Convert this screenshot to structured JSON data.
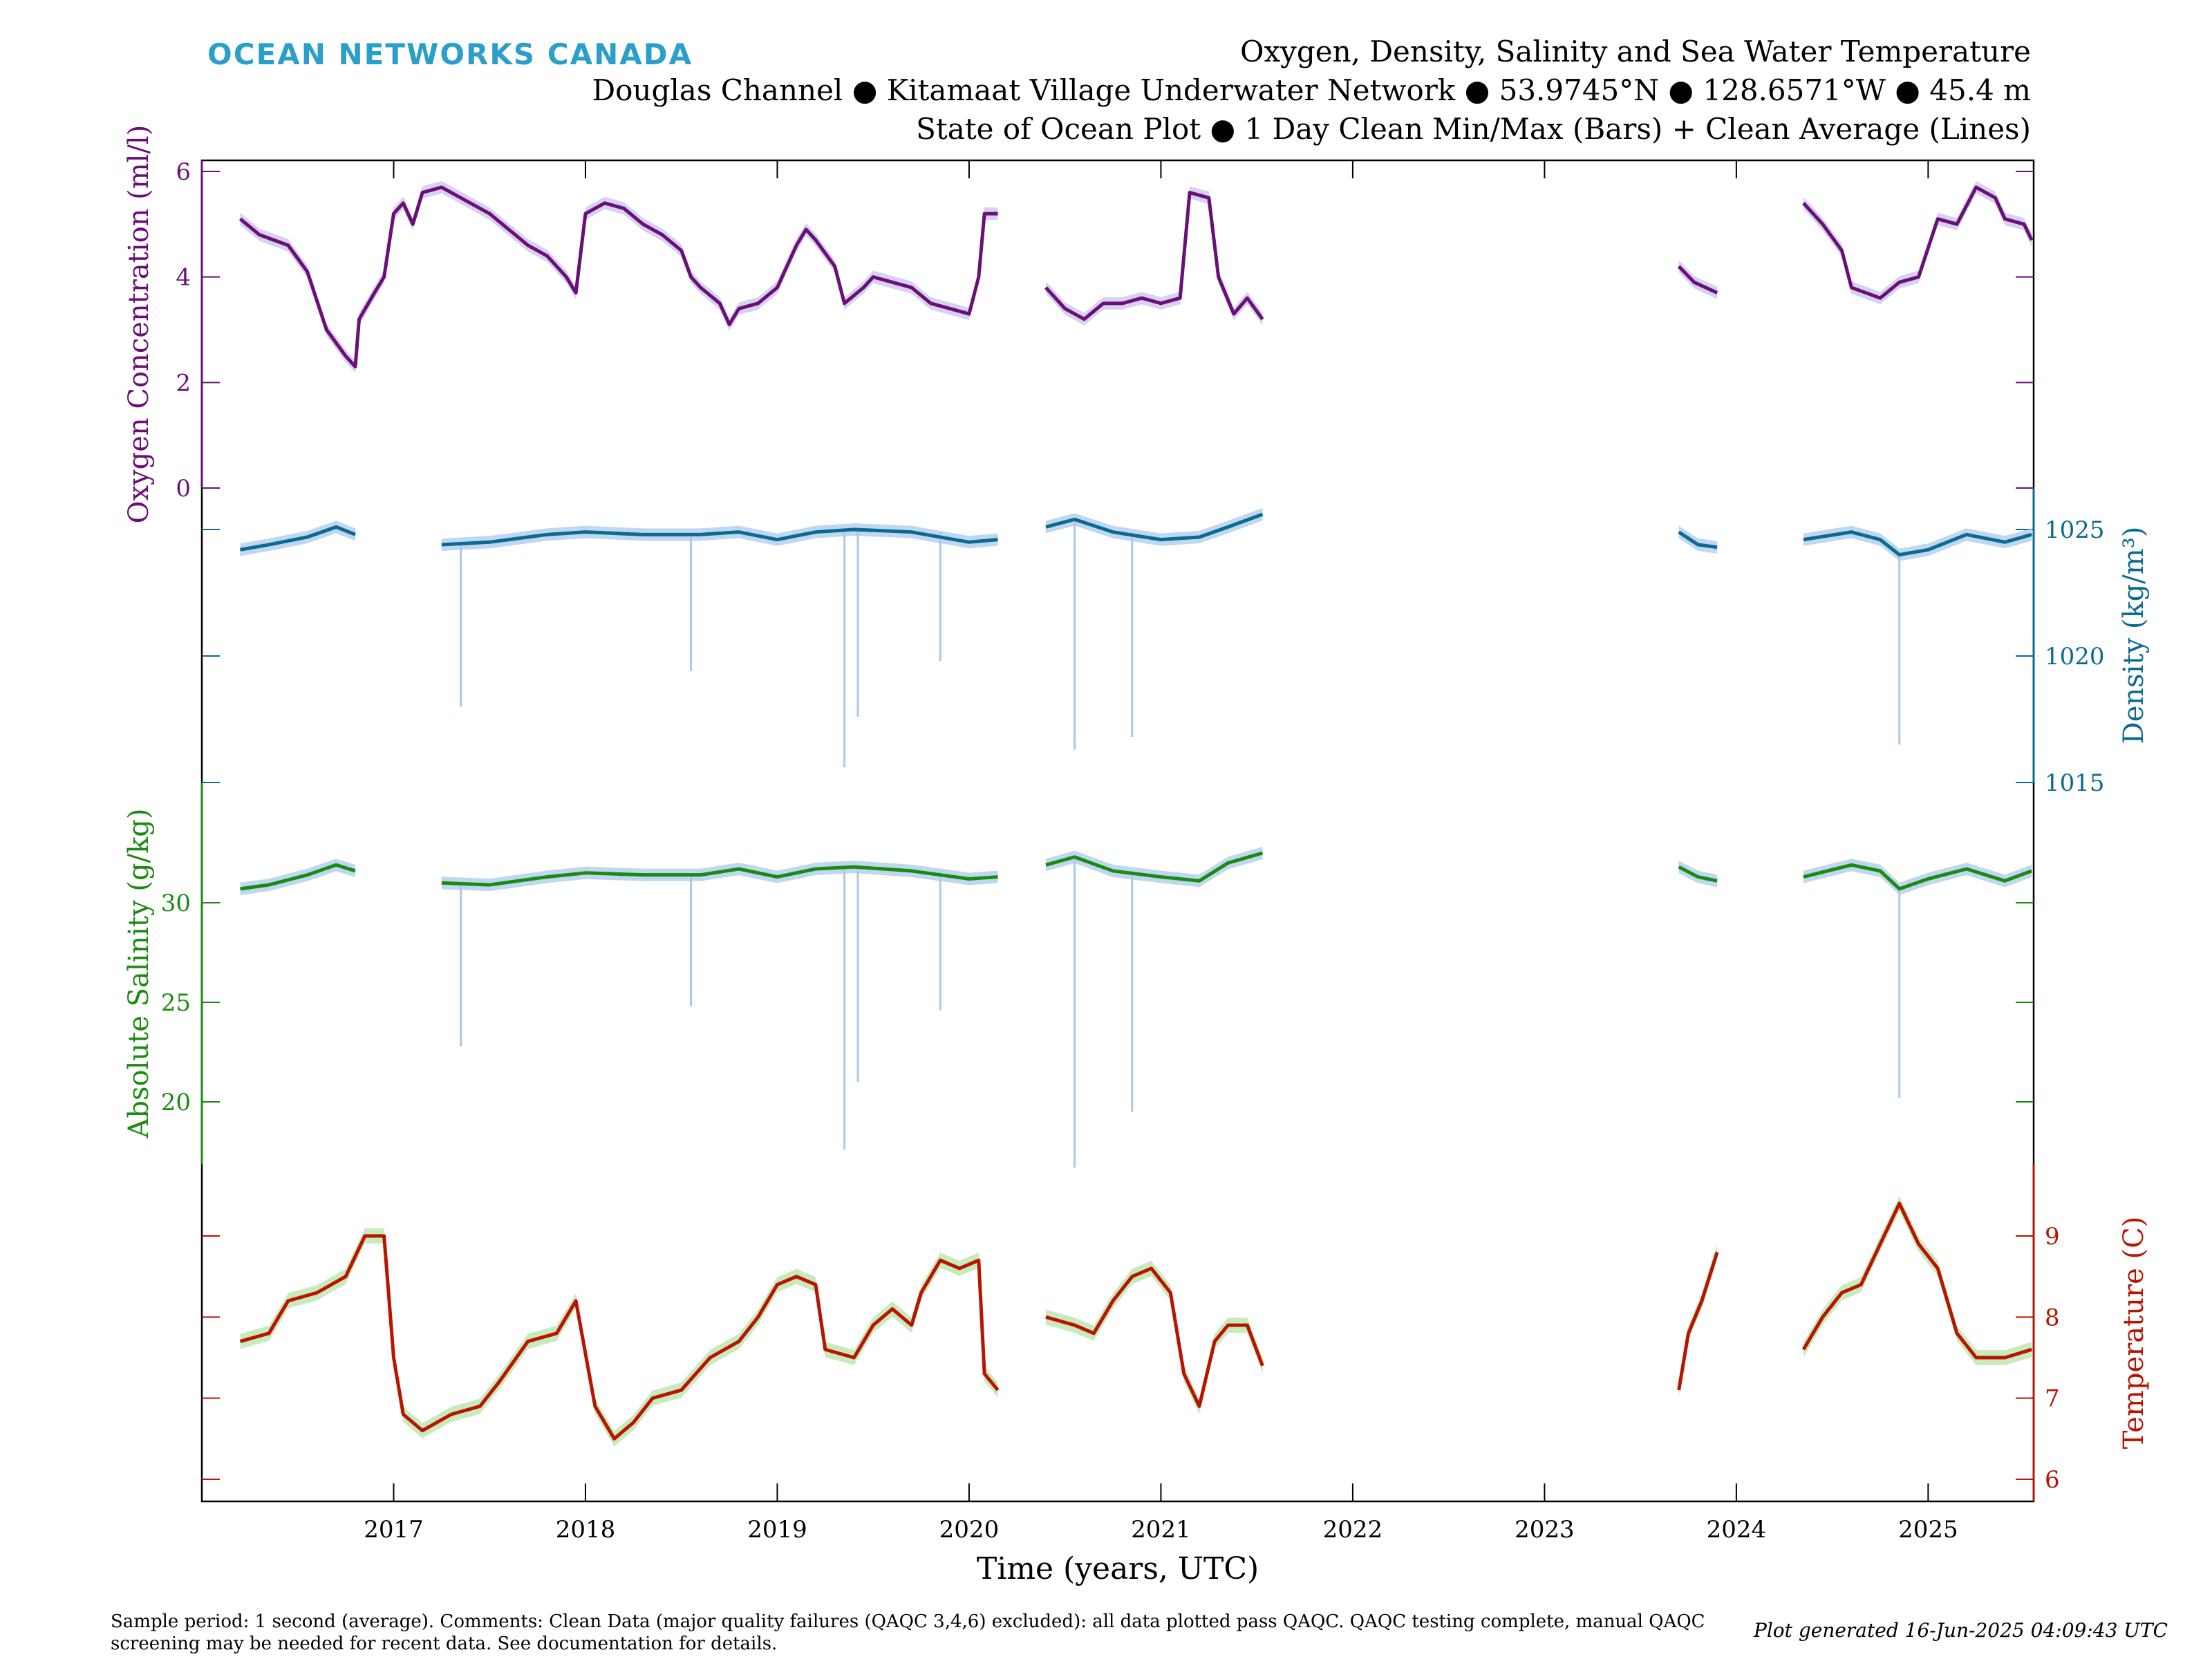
{
  "header": {
    "logo": "OCEAN NETWORKS CANADA",
    "title": "Oxygen, Density, Salinity and Sea Water Temperature",
    "subtitle": "Douglas Channel ● Kitamaat Village Underwater Network ● 53.9745°N ● 128.6571°W ● 45.4 m",
    "subtitle2": "State of Ocean Plot ● 1 Day Clean Min/Max (Bars) + Clean Average (Lines)"
  },
  "footer": {
    "note": "Sample period: 1 second (average). Comments: Clean Data (major quality failures (QAQC 3,4,6) excluded): all data plotted pass QAQC. QAQC testing complete, manual QAQC screening may be needed for recent data. See documentation for details.",
    "generated": "Plot generated 16-Jun-2025 04:09:43 UTC"
  },
  "colors": {
    "oxygen": "#6b0f78",
    "oxygen_band": "#c9c3ea",
    "density": "#0b6a8f",
    "salinity": "#1a8a10",
    "temperature": "#b81400",
    "band_blue": "#a9c9ec",
    "band_green": "#b5e4a8",
    "logo": "#2a9fc9"
  },
  "chart_data": {
    "type": "line",
    "xlabel": "Time (years, UTC)",
    "xlim": [
      2016.0,
      2025.55
    ],
    "x_ticks": [
      "2017",
      "2018",
      "2019",
      "2020",
      "2021",
      "2022",
      "2023",
      "2024",
      "2025"
    ],
    "series": [
      {
        "name": "Oxygen Concentration",
        "ylabel": "Oxygen Concentration (ml/l)",
        "axis": "left",
        "ticks": [
          "0",
          "2",
          "4",
          "6"
        ],
        "segments": [
          [
            [
              2016.2,
              5.1
            ],
            [
              2016.3,
              4.8
            ],
            [
              2016.45,
              4.6
            ],
            [
              2016.55,
              4.1
            ],
            [
              2016.65,
              3.0
            ],
            [
              2016.75,
              2.5
            ],
            [
              2016.8,
              2.3
            ],
            [
              2016.82,
              3.2
            ],
            [
              2016.9,
              3.7
            ],
            [
              2016.95,
              4.0
            ],
            [
              2017.0,
              5.2
            ],
            [
              2017.05,
              5.4
            ],
            [
              2017.1,
              5.0
            ],
            [
              2017.15,
              5.6
            ],
            [
              2017.25,
              5.7
            ],
            [
              2017.35,
              5.5
            ],
            [
              2017.5,
              5.2
            ],
            [
              2017.6,
              4.9
            ],
            [
              2017.7,
              4.6
            ],
            [
              2017.8,
              4.4
            ],
            [
              2017.9,
              4.0
            ],
            [
              2017.95,
              3.7
            ],
            [
              2018.0,
              5.2
            ],
            [
              2018.1,
              5.4
            ],
            [
              2018.2,
              5.3
            ],
            [
              2018.3,
              5.0
            ],
            [
              2018.4,
              4.8
            ],
            [
              2018.5,
              4.5
            ],
            [
              2018.55,
              4.0
            ],
            [
              2018.6,
              3.8
            ],
            [
              2018.7,
              3.5
            ],
            [
              2018.75,
              3.1
            ],
            [
              2018.8,
              3.4
            ],
            [
              2018.9,
              3.5
            ],
            [
              2019.0,
              3.8
            ],
            [
              2019.05,
              4.2
            ],
            [
              2019.1,
              4.6
            ],
            [
              2019.15,
              4.9
            ],
            [
              2019.2,
              4.7
            ],
            [
              2019.3,
              4.2
            ],
            [
              2019.35,
              3.5
            ],
            [
              2019.45,
              3.8
            ],
            [
              2019.5,
              4.0
            ],
            [
              2019.6,
              3.9
            ],
            [
              2019.7,
              3.8
            ],
            [
              2019.8,
              3.5
            ],
            [
              2019.9,
              3.4
            ],
            [
              2020.0,
              3.3
            ],
            [
              2020.05,
              4.0
            ],
            [
              2020.08,
              5.2
            ],
            [
              2020.15,
              5.2
            ]
          ],
          [
            [
              2020.4,
              3.8
            ],
            [
              2020.5,
              3.4
            ],
            [
              2020.6,
              3.2
            ],
            [
              2020.7,
              3.5
            ],
            [
              2020.8,
              3.5
            ],
            [
              2020.9,
              3.6
            ],
            [
              2021.0,
              3.5
            ],
            [
              2021.1,
              3.6
            ],
            [
              2021.15,
              5.6
            ],
            [
              2021.25,
              5.5
            ],
            [
              2021.3,
              4.0
            ],
            [
              2021.38,
              3.3
            ],
            [
              2021.45,
              3.6
            ],
            [
              2021.53,
              3.2
            ]
          ],
          [
            [
              2023.7,
              4.2
            ],
            [
              2023.78,
              3.9
            ],
            [
              2023.9,
              3.7
            ]
          ],
          [
            [
              2024.35,
              5.4
            ],
            [
              2024.45,
              5.0
            ],
            [
              2024.55,
              4.5
            ],
            [
              2024.6,
              3.8
            ],
            [
              2024.75,
              3.6
            ],
            [
              2024.85,
              3.9
            ],
            [
              2024.95,
              4.0
            ],
            [
              2025.05,
              5.1
            ],
            [
              2025.15,
              5.0
            ],
            [
              2025.25,
              5.7
            ],
            [
              2025.35,
              5.5
            ],
            [
              2025.4,
              5.1
            ],
            [
              2025.5,
              5.0
            ],
            [
              2025.54,
              4.7
            ]
          ]
        ]
      },
      {
        "name": "Density",
        "ylabel": "Density (kg/m³)",
        "axis": "right",
        "ticks": [
          "1015",
          "1020",
          "1025"
        ],
        "segments": [
          [
            [
              2016.2,
              1024.2
            ],
            [
              2016.35,
              1024.4
            ],
            [
              2016.55,
              1024.7
            ],
            [
              2016.7,
              1025.1
            ],
            [
              2016.8,
              1024.8
            ]
          ],
          [
            [
              2017.25,
              1024.4
            ],
            [
              2017.5,
              1024.5
            ],
            [
              2017.8,
              1024.8
            ],
            [
              2018.0,
              1024.9
            ],
            [
              2018.3,
              1024.8
            ],
            [
              2018.6,
              1024.8
            ],
            [
              2018.8,
              1024.9
            ],
            [
              2019.0,
              1024.6
            ],
            [
              2019.2,
              1024.9
            ],
            [
              2019.4,
              1025.0
            ],
            [
              2019.7,
              1024.9
            ],
            [
              2020.0,
              1024.5
            ],
            [
              2020.15,
              1024.6
            ]
          ],
          [
            [
              2020.4,
              1025.1
            ],
            [
              2020.55,
              1025.4
            ],
            [
              2020.75,
              1024.9
            ],
            [
              2021.0,
              1024.6
            ],
            [
              2021.2,
              1024.7
            ],
            [
              2021.35,
              1025.1
            ],
            [
              2021.53,
              1025.6
            ]
          ],
          [
            [
              2023.7,
              1024.9
            ],
            [
              2023.8,
              1024.4
            ],
            [
              2023.9,
              1024.3
            ]
          ],
          [
            [
              2024.35,
              1024.6
            ],
            [
              2024.6,
              1024.9
            ],
            [
              2024.75,
              1024.6
            ],
            [
              2024.85,
              1024.0
            ],
            [
              2025.0,
              1024.2
            ],
            [
              2025.2,
              1024.8
            ],
            [
              2025.4,
              1024.5
            ],
            [
              2025.54,
              1024.8
            ]
          ]
        ],
        "min_spikes": [
          [
            2017.35,
            1018.0
          ],
          [
            2018.55,
            1019.4
          ],
          [
            2019.35,
            1015.6
          ],
          [
            2019.42,
            1017.6
          ],
          [
            2019.85,
            1019.8
          ],
          [
            2020.55,
            1016.3
          ],
          [
            2020.85,
            1016.8
          ],
          [
            2024.85,
            1016.5
          ]
        ]
      },
      {
        "name": "Absolute Salinity",
        "ylabel": "Absolute Salinity (g/kg)",
        "axis": "left",
        "ticks": [
          "20",
          "25",
          "30"
        ],
        "segments": [
          [
            [
              2016.2,
              30.7
            ],
            [
              2016.35,
              30.9
            ],
            [
              2016.55,
              31.4
            ],
            [
              2016.7,
              31.9
            ],
            [
              2016.8,
              31.6
            ]
          ],
          [
            [
              2017.25,
              31.0
            ],
            [
              2017.5,
              30.9
            ],
            [
              2017.8,
              31.3
            ],
            [
              2018.0,
              31.5
            ],
            [
              2018.3,
              31.4
            ],
            [
              2018.6,
              31.4
            ],
            [
              2018.8,
              31.7
            ],
            [
              2019.0,
              31.3
            ],
            [
              2019.2,
              31.7
            ],
            [
              2019.4,
              31.8
            ],
            [
              2019.7,
              31.6
            ],
            [
              2020.0,
              31.2
            ],
            [
              2020.15,
              31.3
            ]
          ],
          [
            [
              2020.4,
              31.9
            ],
            [
              2020.55,
              32.3
            ],
            [
              2020.75,
              31.6
            ],
            [
              2021.0,
              31.3
            ],
            [
              2021.2,
              31.1
            ],
            [
              2021.35,
              32.0
            ],
            [
              2021.53,
              32.5
            ]
          ],
          [
            [
              2023.7,
              31.8
            ],
            [
              2023.8,
              31.3
            ],
            [
              2023.9,
              31.1
            ]
          ],
          [
            [
              2024.35,
              31.3
            ],
            [
              2024.6,
              31.9
            ],
            [
              2024.75,
              31.6
            ],
            [
              2024.85,
              30.7
            ],
            [
              2025.0,
              31.2
            ],
            [
              2025.2,
              31.7
            ],
            [
              2025.4,
              31.1
            ],
            [
              2025.54,
              31.6
            ]
          ]
        ],
        "min_spikes": [
          [
            2017.35,
            22.8
          ],
          [
            2018.55,
            24.8
          ],
          [
            2019.35,
            17.6
          ],
          [
            2019.42,
            21.0
          ],
          [
            2019.85,
            24.6
          ],
          [
            2020.55,
            16.7
          ],
          [
            2020.85,
            19.5
          ],
          [
            2024.85,
            20.2
          ]
        ]
      },
      {
        "name": "Temperature",
        "ylabel": "Temperature (C)",
        "axis": "right",
        "ticks": [
          "6",
          "7",
          "8",
          "9"
        ],
        "segments": [
          [
            [
              2016.2,
              7.7
            ],
            [
              2016.35,
              7.8
            ],
            [
              2016.45,
              8.2
            ],
            [
              2016.6,
              8.3
            ],
            [
              2016.75,
              8.5
            ],
            [
              2016.85,
              9.0
            ],
            [
              2016.95,
              9.0
            ],
            [
              2017.0,
              7.5
            ],
            [
              2017.05,
              6.8
            ],
            [
              2017.15,
              6.6
            ],
            [
              2017.3,
              6.8
            ],
            [
              2017.45,
              6.9
            ],
            [
              2017.55,
              7.2
            ],
            [
              2017.7,
              7.7
            ],
            [
              2017.85,
              7.8
            ],
            [
              2017.95,
              8.2
            ],
            [
              2018.05,
              6.9
            ],
            [
              2018.15,
              6.5
            ],
            [
              2018.25,
              6.7
            ],
            [
              2018.35,
              7.0
            ],
            [
              2018.5,
              7.1
            ],
            [
              2018.65,
              7.5
            ],
            [
              2018.8,
              7.7
            ],
            [
              2018.9,
              8.0
            ],
            [
              2019.0,
              8.4
            ],
            [
              2019.1,
              8.5
            ],
            [
              2019.2,
              8.4
            ],
            [
              2019.25,
              7.6
            ],
            [
              2019.4,
              7.5
            ],
            [
              2019.5,
              7.9
            ],
            [
              2019.6,
              8.1
            ],
            [
              2019.7,
              7.9
            ],
            [
              2019.75,
              8.3
            ],
            [
              2019.85,
              8.7
            ],
            [
              2019.95,
              8.6
            ],
            [
              2020.05,
              8.7
            ],
            [
              2020.08,
              7.3
            ],
            [
              2020.15,
              7.1
            ]
          ],
          [
            [
              2020.4,
              8.0
            ],
            [
              2020.55,
              7.9
            ],
            [
              2020.65,
              7.8
            ],
            [
              2020.75,
              8.2
            ],
            [
              2020.85,
              8.5
            ],
            [
              2020.95,
              8.6
            ],
            [
              2021.05,
              8.3
            ],
            [
              2021.12,
              7.3
            ],
            [
              2021.2,
              6.9
            ],
            [
              2021.28,
              7.7
            ],
            [
              2021.35,
              7.9
            ],
            [
              2021.45,
              7.9
            ],
            [
              2021.53,
              7.4
            ]
          ],
          [
            [
              2023.7,
              7.1
            ],
            [
              2023.75,
              7.8
            ],
            [
              2023.82,
              8.2
            ],
            [
              2023.9,
              8.8
            ]
          ],
          [
            [
              2024.35,
              7.6
            ],
            [
              2024.45,
              8.0
            ],
            [
              2024.55,
              8.3
            ],
            [
              2024.65,
              8.4
            ],
            [
              2024.75,
              8.9
            ],
            [
              2024.85,
              9.4
            ],
            [
              2024.95,
              8.9
            ],
            [
              2025.05,
              8.6
            ],
            [
              2025.15,
              7.8
            ],
            [
              2025.25,
              7.5
            ],
            [
              2025.4,
              7.5
            ],
            [
              2025.54,
              7.6
            ]
          ]
        ]
      }
    ]
  }
}
